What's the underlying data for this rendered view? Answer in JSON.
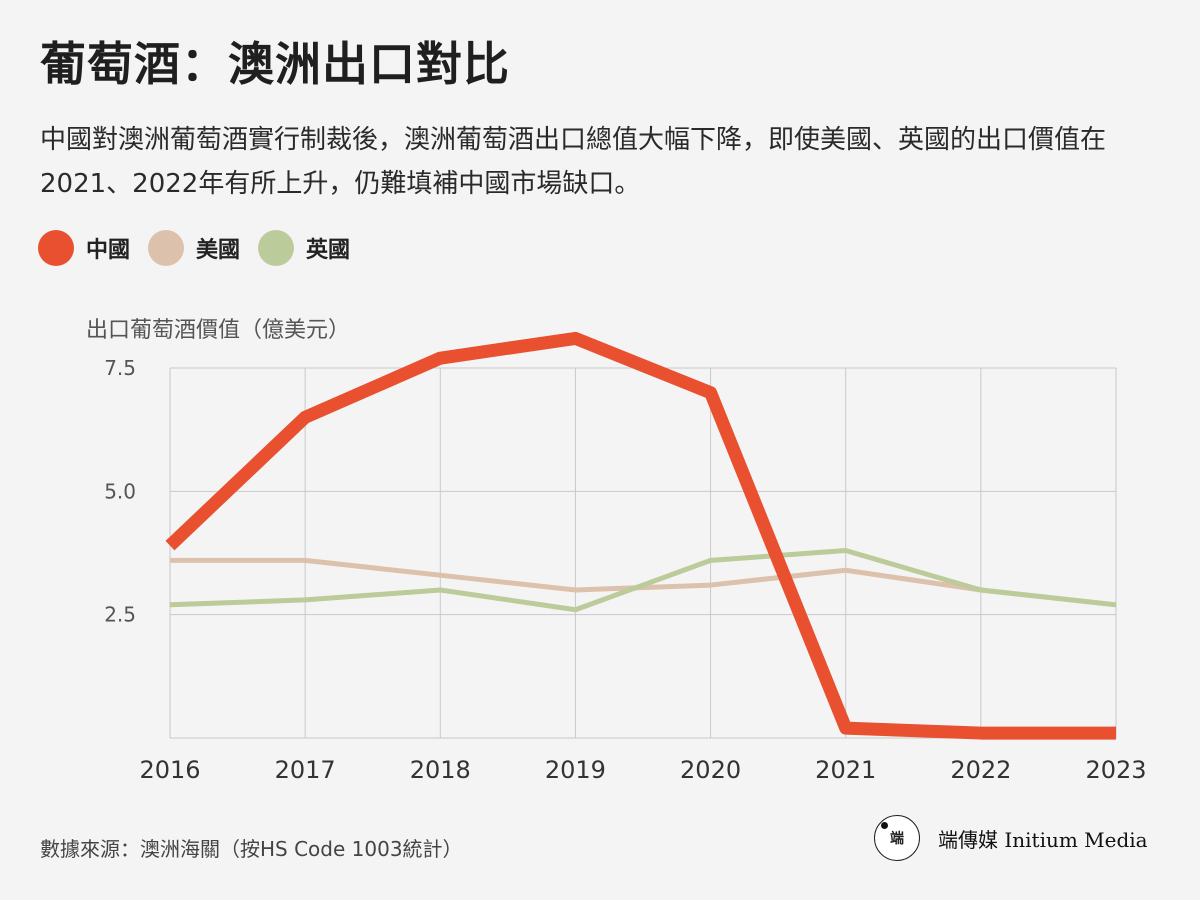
{
  "header": {
    "title": "葡萄酒：澳洲出口對比",
    "subtitle": "中國對澳洲葡萄酒實行制裁後，澳洲葡萄酒出口總值大幅下降，即使美國、英國的出口價值在2021、2022年有所上升，仍難填補中國市場缺口。"
  },
  "legend": [
    {
      "label": "中國",
      "color": "#e8502f"
    },
    {
      "label": "美國",
      "color": "#dcc1ad"
    },
    {
      "label": "英國",
      "color": "#bccb9a"
    }
  ],
  "chart_data": {
    "type": "line",
    "ylabel": "出口葡萄酒價值（億美元）",
    "x": [
      "2016",
      "2017",
      "2018",
      "2019",
      "2020",
      "2021",
      "2022",
      "2023"
    ],
    "ylim": [
      0,
      7.5
    ],
    "yticks": [
      "2.5",
      "5.0",
      "7.5"
    ],
    "grid": true,
    "legend_position": "top-left",
    "series": [
      {
        "name": "中國",
        "color": "#e8502f",
        "values": [
          3.9,
          6.5,
          7.7,
          8.1,
          7.0,
          0.2,
          0.1,
          0.1
        ]
      },
      {
        "name": "美國",
        "color": "#dcc1ad",
        "values": [
          3.6,
          3.6,
          3.3,
          3.0,
          3.1,
          3.4,
          3.0,
          2.7
        ]
      },
      {
        "name": "英國",
        "color": "#bccb9a",
        "values": [
          2.7,
          2.8,
          3.0,
          2.6,
          3.6,
          3.8,
          3.0,
          2.7
        ]
      }
    ]
  },
  "footer": {
    "source": "數據來源：澳洲海關（按HS Code 1003統計）",
    "brand_logo_text": "端",
    "brand_name": "端傳媒 Initium Media"
  }
}
